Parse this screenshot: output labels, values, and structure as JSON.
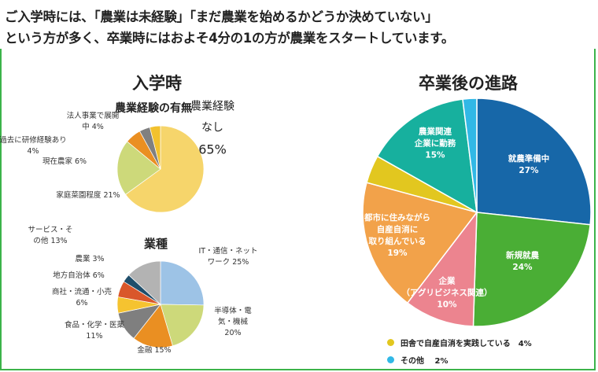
{
  "header": {
    "line1": "ご入学時には、「農業は未経験」「まだ農業を始めるかどうか決めていない」",
    "line2": "という方が多く、卒業時にはおよそ4分の1の方が農業をスタートしています。"
  },
  "chart_data": [
    {
      "type": "pie",
      "section_title": "入学時",
      "title": "農業経験の有無",
      "labels": [
        "農業経験なし",
        "家庭菜園程度",
        "現在農家",
        "過去に研修経験あり",
        "法人事業で展開中"
      ],
      "values": [
        65,
        21,
        6,
        4,
        4
      ],
      "colors": [
        "#f6d56b",
        "#cdd97a",
        "#ea8f22",
        "#808080",
        "#f2c12e"
      ],
      "display": [
        "農業経験|なし|65%",
        "家庭菜園程度 21%",
        "現在農家 6%",
        "過去に研修経験あり|4%",
        "法人事業で展開|中 4%"
      ]
    },
    {
      "type": "pie",
      "title": "業種",
      "labels": [
        "IT・通信・ネットワーク",
        "半導体・電気・機械",
        "金融",
        "食品・化学・医薬",
        "商社・流通・小売",
        "地方自治体",
        "農業",
        "サービス・その他"
      ],
      "values": [
        25,
        20,
        15,
        11,
        6,
        6,
        3,
        13
      ],
      "colors": [
        "#9dc3e6",
        "#cdd97a",
        "#ea8f22",
        "#7f7f7f",
        "#f5c330",
        "#d9572b",
        "#1f4e6b",
        "#b3b3b3"
      ],
      "display": [
        "IT・通信・ネット|ワーク 25%",
        "半導体・電|気・機械|20%",
        "金融 15%",
        "食品・化学・医薬|11%",
        "商社・流通・小売|6%",
        "地方自治体 6%",
        "農業 3%",
        "サービス・そ|の他 13%"
      ]
    },
    {
      "type": "pie",
      "title": "卒業後の進路",
      "labels": [
        "就農準備中",
        "新規就農",
        "企業（アグリビジネス関連）",
        "都市に住みながら自産自消に取り組んでいる",
        "田舎で自産自消を実践している",
        "農業関連企業に勤務",
        "その他"
      ],
      "values": [
        27,
        24,
        10,
        19,
        4,
        15,
        2
      ],
      "colors": [
        "#1767a8",
        "#4aae35",
        "#ec848f",
        "#f2a24a",
        "#e2c71f",
        "#17b09e",
        "#31b8e6"
      ],
      "display": [
        "就農準備中|27%",
        "新規就農|24%",
        "企業|（アグリビジネス関連）|10%",
        "都市に住みながら|自産自消に|取り組んでいる|19%",
        "",
        "農業関連|企業に勤務|15%",
        ""
      ],
      "legend": [
        "田舎で自産自消を実践している　4%",
        "その他　 2%"
      ]
    }
  ]
}
